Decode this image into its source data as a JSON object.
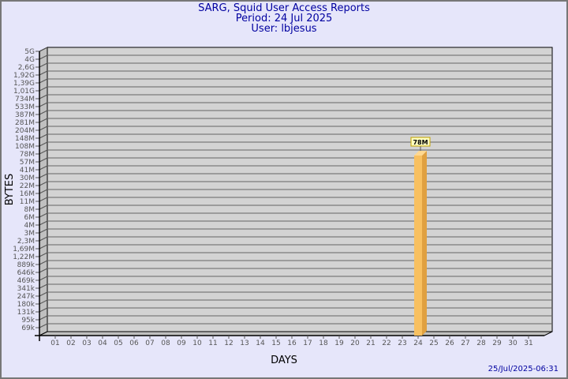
{
  "header": {
    "title": "SARG, Squid User Access Reports",
    "period": "Period: 24 Jul 2025",
    "user": "User: lbjesus"
  },
  "footer": {
    "timestamp": "25/Jul/2025-06:31"
  },
  "colors": {
    "background": "#e6e6fa",
    "plot": "#d3d3d3",
    "bar": "#f8c060",
    "bar_side": "#e0a040",
    "title": "#0000a0"
  },
  "chart_data": {
    "type": "bar",
    "title": "SARG, Squid User Access Reports",
    "xlabel": "DAYS",
    "ylabel": "BYTES",
    "yscale": "log",
    "y_tick_labels": [
      "5G",
      "4G",
      "2,6G",
      "1,92G",
      "1,39G",
      "1,01G",
      "734M",
      "533M",
      "387M",
      "281M",
      "204M",
      "148M",
      "108M",
      "78M",
      "57M",
      "41M",
      "30M",
      "22M",
      "16M",
      "11M",
      "8M",
      "6M",
      "4M",
      "3M",
      "2,3M",
      "1,69M",
      "1,22M",
      "889k",
      "646k",
      "469k",
      "341k",
      "247k",
      "180k",
      "131k",
      "95k",
      "69k"
    ],
    "categories": [
      "01",
      "02",
      "03",
      "04",
      "05",
      "06",
      "07",
      "08",
      "09",
      "10",
      "11",
      "12",
      "13",
      "14",
      "15",
      "16",
      "17",
      "18",
      "19",
      "20",
      "21",
      "22",
      "23",
      "24",
      "25",
      "26",
      "27",
      "28",
      "29",
      "30",
      "31"
    ],
    "bars": [
      {
        "day": "24",
        "value": "78M"
      }
    ],
    "grid": true
  }
}
